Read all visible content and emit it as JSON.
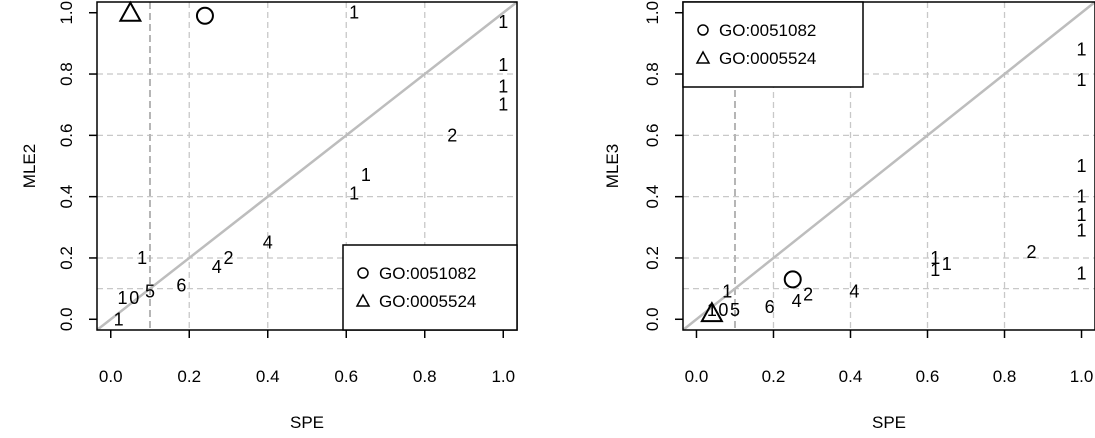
{
  "chart_data": [
    {
      "type": "scatter",
      "xlabel": "SPE",
      "ylabel": "MLE2",
      "xlim": [
        0,
        1
      ],
      "ylim": [
        0,
        1
      ],
      "x_ticks": [
        "0.0",
        "0.2",
        "0.4",
        "0.6",
        "0.8",
        "1.0"
      ],
      "y_ticks": [
        "0.0",
        "0.2",
        "0.4",
        "0.6",
        "0.8",
        "1.0"
      ],
      "reference_line": "y = x",
      "vertical_guides": [
        0.1
      ],
      "grid": true,
      "legend_position": "bottom-right",
      "legend": [
        {
          "symbol": "circle",
          "label": "GO:0051082"
        },
        {
          "symbol": "triangle",
          "label": "GO:0005524"
        }
      ],
      "numbered_points": [
        {
          "label": "1",
          "x": 0.62,
          "y": 1.0
        },
        {
          "label": "2",
          "x": 0.87,
          "y": 0.6
        },
        {
          "label": "1",
          "x": 0.65,
          "y": 0.47
        },
        {
          "label": "1",
          "x": 0.62,
          "y": 0.41
        },
        {
          "label": "4",
          "x": 0.4,
          "y": 0.25
        },
        {
          "label": "2",
          "x": 0.3,
          "y": 0.2
        },
        {
          "label": "4",
          "x": 0.27,
          "y": 0.17
        },
        {
          "label": "1",
          "x": 0.08,
          "y": 0.2
        },
        {
          "label": "6",
          "x": 0.18,
          "y": 0.11
        },
        {
          "label": "5",
          "x": 0.1,
          "y": 0.09
        },
        {
          "label": "1",
          "x": 0.03,
          "y": 0.07
        },
        {
          "label": "0",
          "x": 0.06,
          "y": 0.07
        },
        {
          "label": "1",
          "x": 0.02,
          "y": 0.0
        },
        {
          "label": "1",
          "x": 1.0,
          "y": 0.97
        },
        {
          "label": "1",
          "x": 1.0,
          "y": 0.83
        },
        {
          "label": "1",
          "x": 1.0,
          "y": 0.76
        },
        {
          "label": "1",
          "x": 1.0,
          "y": 0.7
        }
      ],
      "circle_points": [
        {
          "x": 0.24,
          "y": 0.99
        }
      ],
      "triangle_points": [
        {
          "x": 0.05,
          "y": 1.0
        }
      ]
    },
    {
      "type": "scatter",
      "xlabel": "SPE",
      "ylabel": "MLE3",
      "xlim": [
        0,
        1
      ],
      "ylim": [
        0,
        1
      ],
      "x_ticks": [
        "0.0",
        "0.2",
        "0.4",
        "0.6",
        "0.8",
        "1.0"
      ],
      "y_ticks": [
        "0.0",
        "0.2",
        "0.4",
        "0.6",
        "0.8",
        "1.0"
      ],
      "reference_line": "y = x",
      "vertical_guides": [
        0.1
      ],
      "grid": true,
      "legend_position": "top-left",
      "legend": [
        {
          "symbol": "circle",
          "label": "GO:0051082"
        },
        {
          "symbol": "triangle",
          "label": "GO:0005524"
        }
      ],
      "numbered_points": [
        {
          "label": "1",
          "x": 1.0,
          "y": 0.88
        },
        {
          "label": "1",
          "x": 1.0,
          "y": 0.78
        },
        {
          "label": "1",
          "x": 1.0,
          "y": 0.5
        },
        {
          "label": "1",
          "x": 1.0,
          "y": 0.4
        },
        {
          "label": "1",
          "x": 1.0,
          "y": 0.34
        },
        {
          "label": "1",
          "x": 1.0,
          "y": 0.29
        },
        {
          "label": "1",
          "x": 1.0,
          "y": 0.15
        },
        {
          "label": "2",
          "x": 0.87,
          "y": 0.22
        },
        {
          "label": "1",
          "x": 0.62,
          "y": 0.2
        },
        {
          "label": "1",
          "x": 0.65,
          "y": 0.18
        },
        {
          "label": "1",
          "x": 0.62,
          "y": 0.16
        },
        {
          "label": "4",
          "x": 0.41,
          "y": 0.09
        },
        {
          "label": "2",
          "x": 0.29,
          "y": 0.08
        },
        {
          "label": "4",
          "x": 0.26,
          "y": 0.06
        },
        {
          "label": "6",
          "x": 0.19,
          "y": 0.04
        },
        {
          "label": "1",
          "x": 0.08,
          "y": 0.09
        },
        {
          "label": "5",
          "x": 0.1,
          "y": 0.03
        },
        {
          "label": "0",
          "x": 0.07,
          "y": 0.03
        },
        {
          "label": "1",
          "x": 0.04,
          "y": 0.03
        }
      ],
      "circle_points": [
        {
          "x": 0.25,
          "y": 0.13
        }
      ],
      "triangle_points": [
        {
          "x": 0.04,
          "y": 0.02
        }
      ]
    }
  ]
}
